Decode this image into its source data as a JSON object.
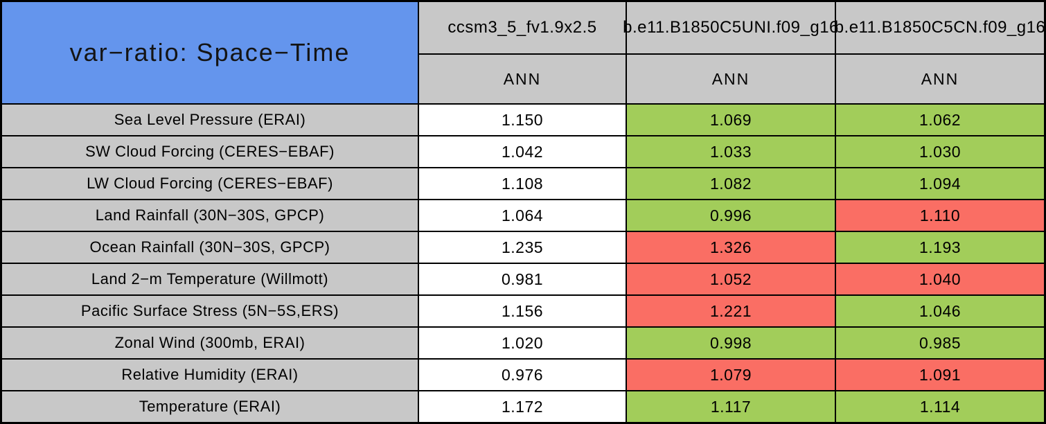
{
  "chart_data": {
    "type": "table",
    "title": "var−ratio: Space−Time",
    "columns": [
      {
        "model": "ccsm3_5_fv1.9x2.5",
        "season": "ANN"
      },
      {
        "model": "b.e11.B1850C5UNI.f09_g16",
        "season": "ANN"
      },
      {
        "model": "b.e11.B1850C5CN.f09_g16",
        "season": "ANN"
      }
    ],
    "rows": [
      {
        "label": "Sea Level Pressure (ERAI)",
        "values": [
          "1.150",
          "1.069",
          "1.062"
        ],
        "cell_colors": [
          "white",
          "green",
          "green"
        ]
      },
      {
        "label": "SW Cloud Forcing (CERES−EBAF)",
        "values": [
          "1.042",
          "1.033",
          "1.030"
        ],
        "cell_colors": [
          "white",
          "green",
          "green"
        ]
      },
      {
        "label": "LW Cloud Forcing (CERES−EBAF)",
        "values": [
          "1.108",
          "1.082",
          "1.094"
        ],
        "cell_colors": [
          "white",
          "green",
          "green"
        ]
      },
      {
        "label": "Land Rainfall (30N−30S, GPCP)",
        "values": [
          "1.064",
          "0.996",
          "1.110"
        ],
        "cell_colors": [
          "white",
          "green",
          "red"
        ]
      },
      {
        "label": "Ocean Rainfall (30N−30S, GPCP)",
        "values": [
          "1.235",
          "1.326",
          "1.193"
        ],
        "cell_colors": [
          "white",
          "red",
          "green"
        ]
      },
      {
        "label": "Land 2−m Temperature (Willmott)",
        "values": [
          "0.981",
          "1.052",
          "1.040"
        ],
        "cell_colors": [
          "white",
          "red",
          "red"
        ]
      },
      {
        "label": "Pacific Surface Stress (5N−5S,ERS)",
        "values": [
          "1.156",
          "1.221",
          "1.046"
        ],
        "cell_colors": [
          "white",
          "red",
          "green"
        ]
      },
      {
        "label": "Zonal Wind (300mb, ERAI)",
        "values": [
          "1.020",
          "0.998",
          "0.985"
        ],
        "cell_colors": [
          "white",
          "green",
          "green"
        ]
      },
      {
        "label": "Relative Humidity (ERAI)",
        "values": [
          "0.976",
          "1.079",
          "1.091"
        ],
        "cell_colors": [
          "white",
          "red",
          "red"
        ]
      },
      {
        "label": "Temperature (ERAI)",
        "values": [
          "1.172",
          "1.117",
          "1.114"
        ],
        "cell_colors": [
          "white",
          "green",
          "green"
        ]
      }
    ],
    "colors": {
      "green": "#A2CD5A",
      "red": "#FA6E64",
      "white": "#FFFFFF",
      "header_gray": "#C8C8C8",
      "title_blue": "#6495ED",
      "border_black": "#000000"
    }
  }
}
